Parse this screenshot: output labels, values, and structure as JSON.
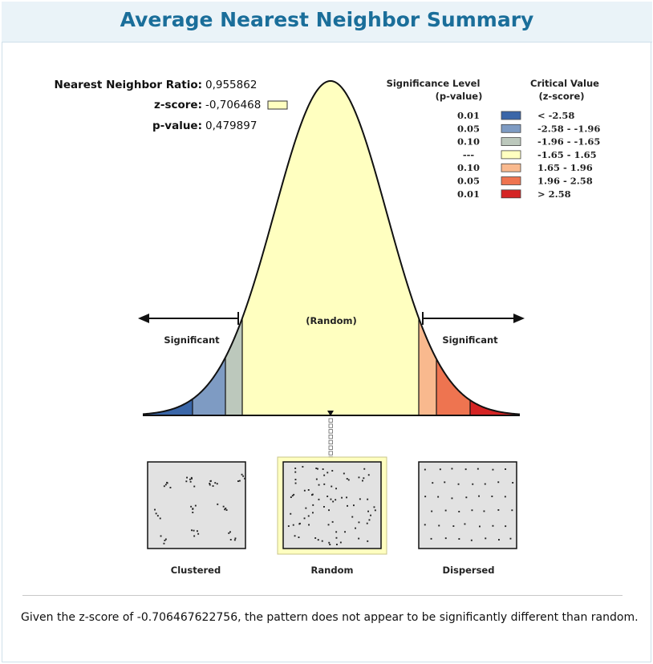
{
  "header": {
    "title": "Average Nearest Neighbor Summary"
  },
  "stats": {
    "nn_ratio_label": "Nearest Neighbor Ratio:",
    "nn_ratio_value": "0,955862",
    "zscore_label": "z-score:",
    "zscore_value": "-0,706468",
    "pvalue_label": "p-value:",
    "pvalue_value": "0,479897"
  },
  "legend": {
    "significance_title_1": "Significance Level",
    "significance_title_2": "(p-value)",
    "critical_title_1": "Critical Value",
    "critical_title_2": "(z-score)",
    "rows": [
      {
        "p": "0.01",
        "z": "< -2.58",
        "color": "#3a66a8"
      },
      {
        "p": "0.05",
        "z": "-2.58 - -1.96",
        "color": "#7e9bc3"
      },
      {
        "p": "0.10",
        "z": "-1.96 - -1.65",
        "color": "#bcc8bc"
      },
      {
        "p": "---",
        "z": "-1.65 - 1.65",
        "color": "#ffffc0"
      },
      {
        "p": "0.10",
        "z": "1.65 - 1.96",
        "color": "#f9b98e"
      },
      {
        "p": "0.05",
        "z": "1.96 - 2.58",
        "color": "#ee7450"
      },
      {
        "p": "0.01",
        "z": "> 2.58",
        "color": "#d52424"
      }
    ]
  },
  "diagram": {
    "random_label": "(Random)",
    "significant_left": "Significant",
    "significant_right": "Significant",
    "zscore_marker_color": "#ffffc0",
    "random_highlight_color": "#ffffc0"
  },
  "patterns": {
    "clustered": "Clustered",
    "random": "Random",
    "dispersed": "Dispersed"
  },
  "conclusion": {
    "text": "Given the z-score of -0.706467622756, the pattern does not appear to be significantly different than random."
  }
}
